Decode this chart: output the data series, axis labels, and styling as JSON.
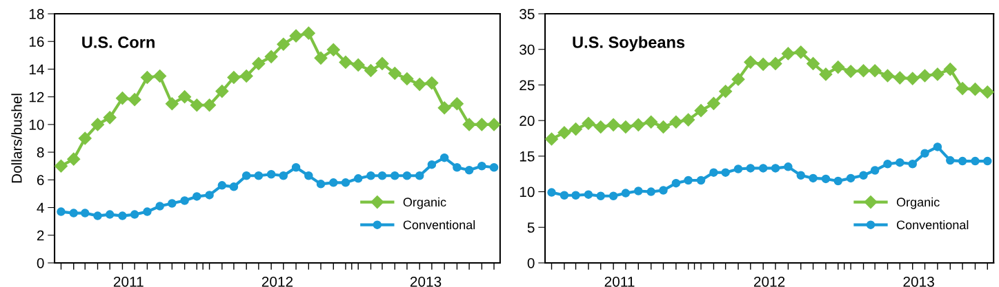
{
  "chart_data": [
    {
      "type": "line",
      "title": "U.S. Corn",
      "ylabel": "Dollars/bushel",
      "x": [
        "2011-01",
        "2011-02",
        "2011-03",
        "2011-04",
        "2011-05",
        "2011-06",
        "2011-07",
        "2011-08",
        "2011-09",
        "2011-10",
        "2011-11",
        "2011-12",
        "2012-01",
        "2012-02",
        "2012-03",
        "2012-04",
        "2012-05",
        "2012-06",
        "2012-07",
        "2012-08",
        "2012-09",
        "2012-10",
        "2012-11",
        "2012-12",
        "2013-01",
        "2013-02",
        "2013-03",
        "2013-04",
        "2013-05",
        "2013-06",
        "2013-07",
        "2013-08",
        "2013-09",
        "2013-10",
        "2013-11",
        "2013-12"
      ],
      "xlim": [
        "2010-12-16",
        "2013-12-16"
      ],
      "xticks": [
        {
          "value": "2011-06-16",
          "label": "2011"
        },
        {
          "value": "2012-06-16",
          "label": "2012"
        },
        {
          "value": "2013-06-16",
          "label": "2013"
        },
        {
          "value": "2011-12-16",
          "label": null
        },
        {
          "value": "2012-12-16",
          "label": null
        },
        {
          "value": "2011-01",
          "label": null
        },
        {
          "value": "2011-02",
          "label": null
        },
        {
          "value": "2011-03",
          "label": null
        },
        {
          "value": "2011-04",
          "label": null
        },
        {
          "value": "2011-05",
          "label": null
        },
        {
          "value": "2011-06",
          "label": null
        },
        {
          "value": "2011-07",
          "label": null
        },
        {
          "value": "2011-08",
          "label": null
        },
        {
          "value": "2011-09",
          "label": null
        },
        {
          "value": "2011-10",
          "label": null
        },
        {
          "value": "2011-11",
          "label": null
        },
        {
          "value": "2011-12",
          "label": null
        },
        {
          "value": "2012-01",
          "label": null
        },
        {
          "value": "2012-02",
          "label": null
        },
        {
          "value": "2012-03",
          "label": null
        },
        {
          "value": "2012-04",
          "label": null
        },
        {
          "value": "2012-05",
          "label": null
        },
        {
          "value": "2012-06",
          "label": null
        },
        {
          "value": "2012-07",
          "label": null
        },
        {
          "value": "2012-08",
          "label": null
        },
        {
          "value": "2012-09",
          "label": null
        },
        {
          "value": "2012-10",
          "label": null
        },
        {
          "value": "2012-11",
          "label": null
        },
        {
          "value": "2012-12",
          "label": null
        },
        {
          "value": "2013-01",
          "label": null
        },
        {
          "value": "2013-02",
          "label": null
        },
        {
          "value": "2013-03",
          "label": null
        },
        {
          "value": "2013-04",
          "label": null
        },
        {
          "value": "2013-05",
          "label": null
        },
        {
          "value": "2013-06",
          "label": null
        },
        {
          "value": "2013-07",
          "label": null
        },
        {
          "value": "2013-08",
          "label": null
        },
        {
          "value": "2013-09",
          "label": null
        },
        {
          "value": "2013-10",
          "label": null
        },
        {
          "value": "2013-11",
          "label": null
        },
        {
          "value": "2013-12",
          "label": null
        }
      ],
      "ylim": [
        0,
        18
      ],
      "yticks": [
        0,
        2,
        4,
        6,
        8,
        10,
        12,
        14,
        16,
        18
      ],
      "grid": false,
      "legend": "bottom right",
      "series": [
        {
          "name": "Organic",
          "color": "#7dc242",
          "marker": "diamond",
          "values": [
            7.0,
            7.5,
            9.0,
            10.0,
            10.5,
            11.9,
            11.8,
            13.4,
            13.5,
            11.5,
            12.0,
            11.4,
            11.4,
            12.4,
            13.4,
            13.5,
            14.4,
            14.9,
            15.8,
            16.4,
            16.6,
            14.8,
            15.4,
            14.5,
            14.3,
            13.9,
            14.4,
            13.7,
            13.3,
            12.9,
            13.0,
            11.2,
            11.5,
            10.0,
            10.0,
            10.0
          ]
        },
        {
          "name": "Conventional",
          "color": "#1a9ad6",
          "marker": "circle",
          "values": [
            3.7,
            3.6,
            3.6,
            3.4,
            3.5,
            3.4,
            3.5,
            3.7,
            4.1,
            4.3,
            4.5,
            4.8,
            4.9,
            5.6,
            5.5,
            6.3,
            6.3,
            6.4,
            6.3,
            6.9,
            6.3,
            5.7,
            5.8,
            5.8,
            6.1,
            6.3,
            6.3,
            6.3,
            6.3,
            6.3,
            7.1,
            7.6,
            6.9,
            6.7,
            7.0,
            6.9
          ]
        }
      ]
    },
    {
      "type": "line",
      "title": "U.S. Soybeans",
      "x": [
        "2011-01",
        "2011-02",
        "2011-03",
        "2011-04",
        "2011-05",
        "2011-06",
        "2011-07",
        "2011-08",
        "2011-09",
        "2011-10",
        "2011-11",
        "2011-12",
        "2012-01",
        "2012-02",
        "2012-03",
        "2012-04",
        "2012-05",
        "2012-06",
        "2012-07",
        "2012-08",
        "2012-09",
        "2012-10",
        "2012-11",
        "2012-12",
        "2013-01",
        "2013-02",
        "2013-03",
        "2013-04",
        "2013-05",
        "2013-06",
        "2013-07",
        "2013-08",
        "2013-09",
        "2013-10",
        "2013-11",
        "2013-12"
      ],
      "xlim": [
        "2010-12-16",
        "2013-12-16"
      ],
      "xticks": [
        {
          "value": "2011-06-16",
          "label": "2011"
        },
        {
          "value": "2012-06-16",
          "label": "2012"
        },
        {
          "value": "2013-06-16",
          "label": "2013"
        },
        {
          "value": "2011-12-16",
          "label": null
        },
        {
          "value": "2012-12-16",
          "label": null
        },
        {
          "value": "2011-01",
          "label": null
        },
        {
          "value": "2011-02",
          "label": null
        },
        {
          "value": "2011-03",
          "label": null
        },
        {
          "value": "2011-04",
          "label": null
        },
        {
          "value": "2011-05",
          "label": null
        },
        {
          "value": "2011-06",
          "label": null
        },
        {
          "value": "2011-07",
          "label": null
        },
        {
          "value": "2011-08",
          "label": null
        },
        {
          "value": "2011-09",
          "label": null
        },
        {
          "value": "2011-10",
          "label": null
        },
        {
          "value": "2011-11",
          "label": null
        },
        {
          "value": "2011-12",
          "label": null
        },
        {
          "value": "2012-01",
          "label": null
        },
        {
          "value": "2012-02",
          "label": null
        },
        {
          "value": "2012-03",
          "label": null
        },
        {
          "value": "2012-04",
          "label": null
        },
        {
          "value": "2012-05",
          "label": null
        },
        {
          "value": "2012-06",
          "label": null
        },
        {
          "value": "2012-07",
          "label": null
        },
        {
          "value": "2012-08",
          "label": null
        },
        {
          "value": "2012-09",
          "label": null
        },
        {
          "value": "2012-10",
          "label": null
        },
        {
          "value": "2012-11",
          "label": null
        },
        {
          "value": "2012-12",
          "label": null
        },
        {
          "value": "2013-01",
          "label": null
        },
        {
          "value": "2013-02",
          "label": null
        },
        {
          "value": "2013-03",
          "label": null
        },
        {
          "value": "2013-04",
          "label": null
        },
        {
          "value": "2013-05",
          "label": null
        },
        {
          "value": "2013-06",
          "label": null
        },
        {
          "value": "2013-07",
          "label": null
        },
        {
          "value": "2013-08",
          "label": null
        },
        {
          "value": "2013-09",
          "label": null
        },
        {
          "value": "2013-10",
          "label": null
        },
        {
          "value": "2013-11",
          "label": null
        },
        {
          "value": "2013-12",
          "label": null
        }
      ],
      "ylim": [
        0,
        35
      ],
      "yticks": [
        0,
        5,
        10,
        15,
        20,
        25,
        30,
        35
      ],
      "grid": false,
      "legend": "bottom right",
      "series": [
        {
          "name": "Organic",
          "color": "#7dc242",
          "marker": "diamond",
          "values": [
            17.4,
            18.3,
            18.8,
            19.6,
            19.1,
            19.4,
            19.1,
            19.4,
            19.8,
            19.1,
            19.8,
            20.1,
            21.4,
            22.4,
            24.1,
            25.8,
            28.2,
            27.9,
            28.0,
            29.4,
            29.6,
            28.0,
            26.5,
            27.5,
            26.9,
            27.0,
            27.0,
            26.3,
            26.0,
            25.9,
            26.3,
            26.5,
            27.2,
            24.5,
            24.4,
            24.0
          ]
        },
        {
          "name": "Conventional",
          "color": "#1a9ad6",
          "marker": "circle",
          "values": [
            9.9,
            9.5,
            9.5,
            9.6,
            9.4,
            9.4,
            9.8,
            10.1,
            10.0,
            10.2,
            11.2,
            11.6,
            11.6,
            12.7,
            12.7,
            13.2,
            13.3,
            13.3,
            13.3,
            13.5,
            12.3,
            11.9,
            11.8,
            11.5,
            11.9,
            12.3,
            13.0,
            13.9,
            14.1,
            13.9,
            15.4,
            16.3,
            14.4,
            14.3,
            14.3,
            14.3
          ]
        }
      ]
    }
  ]
}
